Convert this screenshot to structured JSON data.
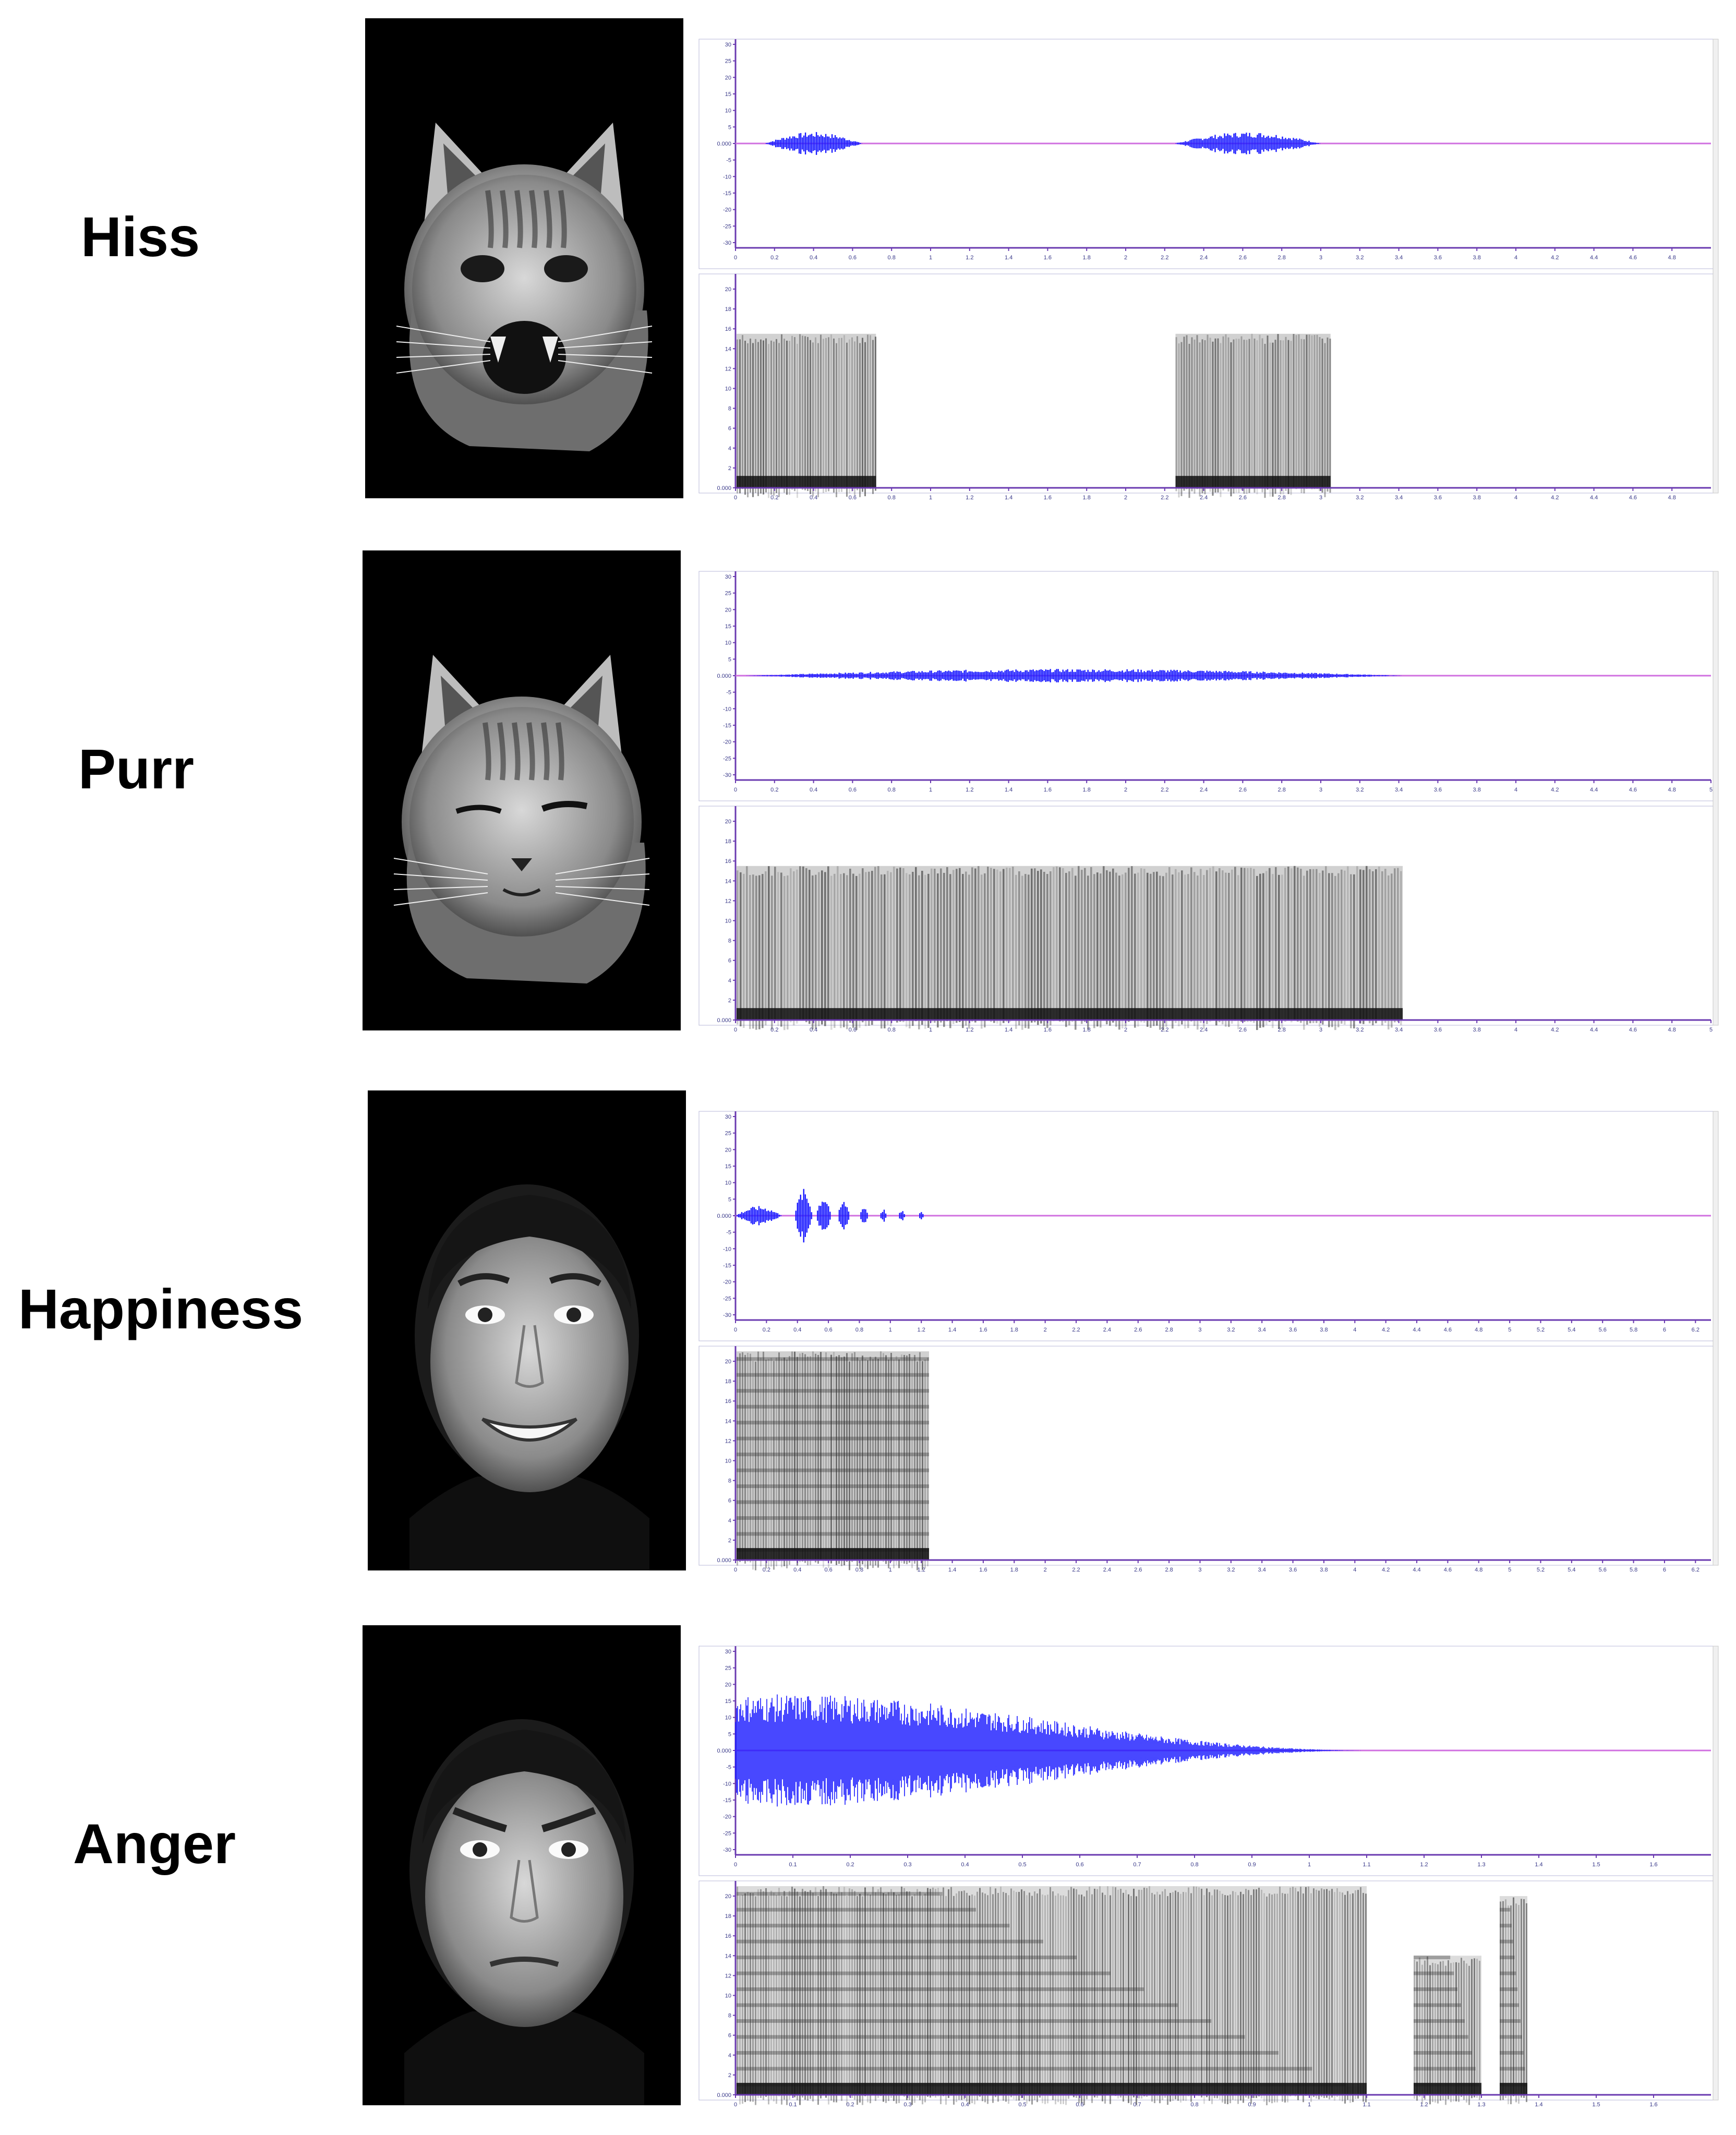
{
  "figure": {
    "rows": [
      {
        "label": "Hiss",
        "photo_icon": "hissing-cat-face-photo",
        "wave_yticks": [
          "30",
          "25",
          "20",
          "15",
          "10",
          "5",
          "0.000",
          "-5",
          "-10",
          "-15",
          "-20",
          "-25",
          "-30"
        ],
        "x_ticks": [
          "0",
          "0.2",
          "0.4",
          "0.6",
          "0.8",
          "1",
          "1.2",
          "1.4",
          "1.6",
          "1.8",
          "2",
          "2.2",
          "2.4",
          "2.6",
          "2.8",
          "3",
          "3.2",
          "3.4",
          "3.6",
          "3.8",
          "4",
          "4.2",
          "4.4",
          "4.6",
          "4.8"
        ],
        "x_max": 5.0,
        "bursts": [
          [
            0.15,
            0.65,
            0.12
          ],
          [
            2.25,
            3.0,
            0.12
          ]
        ],
        "spec_blocks": [
          [
            0.0,
            0.72,
            15.5
          ],
          [
            2.25,
            3.05,
            15.5
          ]
        ],
        "spec_yticks": [
          "20",
          "18",
          "16",
          "14",
          "12",
          "10",
          "8",
          "6",
          "4",
          "2",
          "0.000"
        ]
      },
      {
        "label": "Purr",
        "photo_icon": "squinting-cat-face-photo",
        "wave_yticks": [
          "30",
          "25",
          "20",
          "15",
          "10",
          "5",
          "0.000",
          "-5",
          "-10",
          "-15",
          "-20",
          "-25",
          "-30"
        ],
        "x_ticks": [
          "0",
          "0.2",
          "0.4",
          "0.6",
          "0.8",
          "1",
          "1.2",
          "1.4",
          "1.6",
          "1.8",
          "2",
          "2.2",
          "2.4",
          "2.6",
          "2.8",
          "3",
          "3.2",
          "3.4",
          "3.6",
          "3.8",
          "4",
          "4.2",
          "4.4",
          "4.6",
          "4.8",
          "5"
        ],
        "x_max": 5.0,
        "bursts": [
          [
            0.05,
            3.42,
            0.07
          ]
        ],
        "spec_blocks": [
          [
            0.0,
            3.42,
            15.5
          ]
        ],
        "spec_yticks": [
          "20",
          "18",
          "16",
          "14",
          "12",
          "10",
          "8",
          "6",
          "4",
          "2",
          "0.000"
        ]
      },
      {
        "label": "Happiness",
        "photo_icon": "smiling-woman-face-photo",
        "wave_yticks": [
          "30",
          "25",
          "20",
          "15",
          "10",
          "5",
          "0.000",
          "-5",
          "-10",
          "-15",
          "-20",
          "-25",
          "-30"
        ],
        "x_ticks": [
          "0",
          "0.2",
          "0.4",
          "0.6",
          "0.8",
          "1",
          "1.2",
          "1.4",
          "1.6",
          "1.8",
          "2",
          "2.2",
          "2.4",
          "2.6",
          "2.8",
          "3",
          "3.2",
          "3.4",
          "3.6",
          "3.8",
          "4",
          "4.2",
          "4.4",
          "4.6",
          "4.8",
          "5",
          "5.2",
          "5.4",
          "5.6",
          "5.8",
          "6",
          "6.2"
        ],
        "x_max": 6.3,
        "bursts": [
          [
            0.0,
            0.3,
            0.1
          ],
          [
            0.38,
            0.5,
            0.28
          ],
          [
            0.52,
            0.62,
            0.22
          ],
          [
            0.66,
            0.74,
            0.16
          ],
          [
            0.8,
            0.86,
            0.1
          ],
          [
            0.93,
            0.98,
            0.07
          ],
          [
            1.05,
            1.1,
            0.05
          ],
          [
            1.18,
            1.22,
            0.04
          ]
        ],
        "spec_blocks": [
          [
            0.0,
            1.25,
            21
          ]
        ],
        "spec_yticks": [
          "20",
          "18",
          "16",
          "14",
          "12",
          "10",
          "8",
          "6",
          "4",
          "2",
          "0.000"
        ]
      },
      {
        "label": "Anger",
        "photo_icon": "angry-woman-face-photo",
        "wave_yticks": [
          "30",
          "25",
          "20",
          "15",
          "10",
          "5",
          "0.000",
          "-5",
          "-10",
          "-15",
          "-20",
          "-25",
          "-30"
        ],
        "x_ticks": [
          "0",
          "0.1",
          "0.2",
          "0.3",
          "0.4",
          "0.5",
          "0.6",
          "0.7",
          "0.8",
          "0.9",
          "1",
          "1.1",
          "1.2",
          "1.3",
          "1.4",
          "1.5",
          "1.6"
        ],
        "x_max": 1.7,
        "bursts": [
          [
            0.0,
            1.1,
            0.95
          ]
        ],
        "spec_blocks": [
          [
            0.0,
            1.1,
            21
          ],
          [
            1.18,
            1.3,
            14
          ],
          [
            1.33,
            1.38,
            20
          ]
        ],
        "spec_yticks": [
          "20",
          "18",
          "16",
          "14",
          "12",
          "10",
          "8",
          "6",
          "4",
          "2",
          "0.000"
        ]
      }
    ],
    "colors": {
      "waveform": "#1a1aff",
      "baseline": "#d070e0",
      "axis": "#6a3ab0",
      "spectrogram": "#2a2a2a",
      "photo_bg": "#000000"
    }
  }
}
